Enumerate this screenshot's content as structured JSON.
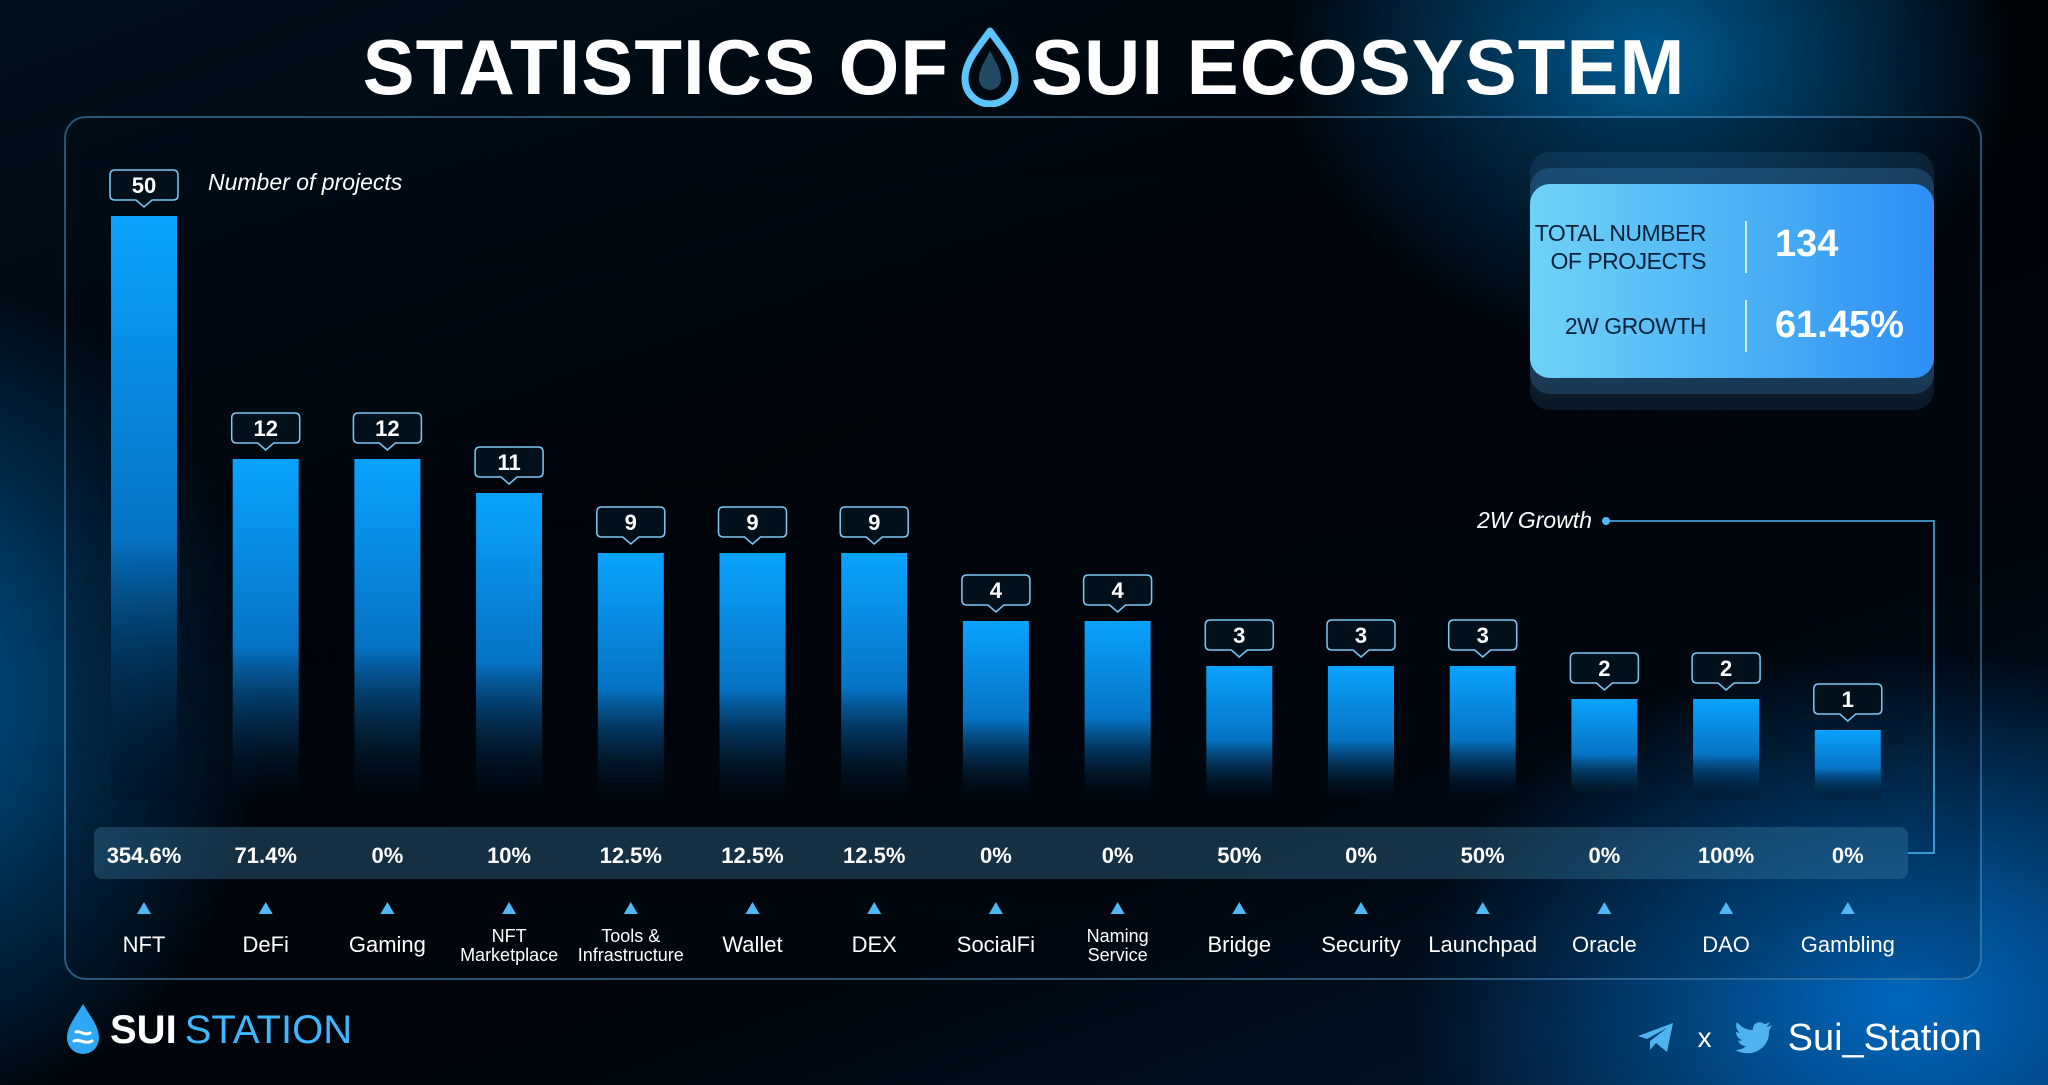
{
  "header": {
    "title_left": "STATISTICS OF",
    "title_right": "SUI ECOSYSTEM"
  },
  "totals": {
    "total_label_line1": "TOTAL NUMBER",
    "total_label_line2": "OF PROJECTS",
    "total_value": "134",
    "growth_label": "2W GROWTH",
    "growth_value": "61.45%"
  },
  "chart_data": {
    "type": "bar",
    "ylabel": "Number of projects",
    "growth_label": "2W Growth",
    "categories": [
      [
        "NFT"
      ],
      [
        "DeFi"
      ],
      [
        "Gaming"
      ],
      [
        "NFT",
        "Marketplace"
      ],
      [
        "Tools &",
        "Infrastructure"
      ],
      [
        "Wallet"
      ],
      [
        "DEX"
      ],
      [
        "SocialFi"
      ],
      [
        "Naming",
        "Service"
      ],
      [
        "Bridge"
      ],
      [
        "Security"
      ],
      [
        "Launchpad"
      ],
      [
        "Oracle"
      ],
      [
        "DAO"
      ],
      [
        "Gambling"
      ]
    ],
    "values": [
      50,
      12,
      12,
      11,
      9,
      9,
      9,
      4,
      4,
      3,
      3,
      3,
      2,
      2,
      1
    ],
    "growth": [
      "354.6%",
      "71.4%",
      "0%",
      "10%",
      "12.5%",
      "12.5%",
      "12.5%",
      "0%",
      "0%",
      "50%",
      "0%",
      "50%",
      "0%",
      "100%",
      "0%"
    ],
    "grid": false,
    "bar_color": "#0aa0ff"
  },
  "footer": {
    "brand_bold": "SUI",
    "brand_rest": "STATION",
    "separator": "x",
    "handle": "Sui_Station"
  },
  "icons": {
    "title_drop": "sui-drop-icon",
    "footer_drop": "sui-drop-icon",
    "telegram": "telegram-icon",
    "twitter": "twitter-icon"
  },
  "colors": {
    "accent": "#3fb6ff",
    "bar": "#0aa0ff",
    "card_start": "#6fd2f7",
    "card_end": "#2d8ef7"
  }
}
